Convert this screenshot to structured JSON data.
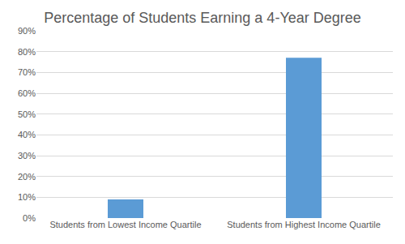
{
  "chart_data": {
    "type": "bar",
    "title": "Percentage of Students Earning a 4-Year Degree",
    "categories": [
      "Students from Lowest Income Quartile",
      "Students from Highest Income Quartile"
    ],
    "values": [
      9,
      77
    ],
    "color": "#5b9bd5",
    "ylim": [
      0,
      90
    ],
    "yticks": [
      {
        "value": 0,
        "label": "0%"
      },
      {
        "value": 10,
        "label": "10%"
      },
      {
        "value": 20,
        "label": "20%"
      },
      {
        "value": 30,
        "label": "30%"
      },
      {
        "value": 40,
        "label": "40%"
      },
      {
        "value": 50,
        "label": "50%"
      },
      {
        "value": 60,
        "label": "60%"
      },
      {
        "value": 70,
        "label": "70%"
      },
      {
        "value": 80,
        "label": "80%"
      },
      {
        "value": 90,
        "label": "90%"
      }
    ],
    "grid": true
  }
}
